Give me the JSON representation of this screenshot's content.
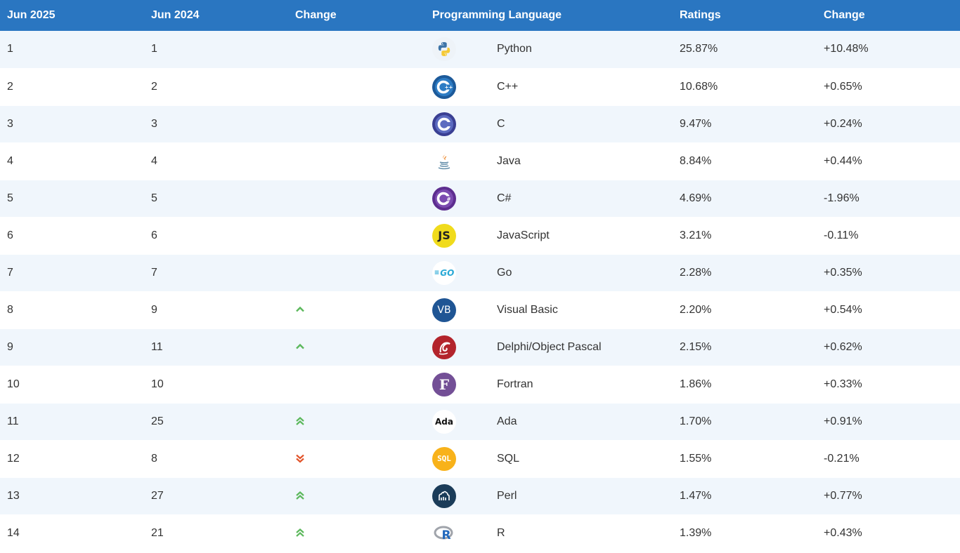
{
  "header": {
    "col_jun2025": "Jun 2025",
    "col_jun2024": "Jun 2024",
    "col_change": "Change",
    "col_language": "Programming Language",
    "col_ratings": "Ratings",
    "col_change2": "Change"
  },
  "colors": {
    "header_bg": "#2a76c1",
    "row_alt": "#f0f6fc",
    "arrow_up": "#5cb85c",
    "arrow_down": "#e2542a"
  },
  "rows": [
    {
      "rank2025": "1",
      "rank2024": "1",
      "trend": "none",
      "icon": "python-icon",
      "language": "Python",
      "rating": "25.87%",
      "change": "+10.48%"
    },
    {
      "rank2025": "2",
      "rank2024": "2",
      "trend": "none",
      "icon": "cplusplus-icon",
      "language": "C++",
      "rating": "10.68%",
      "change": "+0.65%"
    },
    {
      "rank2025": "3",
      "rank2024": "3",
      "trend": "none",
      "icon": "c-icon",
      "language": "C",
      "rating": "9.47%",
      "change": "+0.24%"
    },
    {
      "rank2025": "4",
      "rank2024": "4",
      "trend": "none",
      "icon": "java-icon",
      "language": "Java",
      "rating": "8.84%",
      "change": "+0.44%"
    },
    {
      "rank2025": "5",
      "rank2024": "5",
      "trend": "none",
      "icon": "csharp-icon",
      "language": "C#",
      "rating": "4.69%",
      "change": "-1.96%"
    },
    {
      "rank2025": "6",
      "rank2024": "6",
      "trend": "none",
      "icon": "javascript-icon",
      "language": "JavaScript",
      "rating": "3.21%",
      "change": "-0.11%"
    },
    {
      "rank2025": "7",
      "rank2024": "7",
      "trend": "none",
      "icon": "go-icon",
      "language": "Go",
      "rating": "2.28%",
      "change": "+0.35%"
    },
    {
      "rank2025": "8",
      "rank2024": "9",
      "trend": "up",
      "icon": "visual-basic-icon",
      "language": "Visual Basic",
      "rating": "2.20%",
      "change": "+0.54%"
    },
    {
      "rank2025": "9",
      "rank2024": "11",
      "trend": "up",
      "icon": "delphi-icon",
      "language": "Delphi/Object Pascal",
      "rating": "2.15%",
      "change": "+0.62%"
    },
    {
      "rank2025": "10",
      "rank2024": "10",
      "trend": "none",
      "icon": "fortran-icon",
      "language": "Fortran",
      "rating": "1.86%",
      "change": "+0.33%"
    },
    {
      "rank2025": "11",
      "rank2024": "25",
      "trend": "double-up",
      "icon": "ada-icon",
      "language": "Ada",
      "rating": "1.70%",
      "change": "+0.91%"
    },
    {
      "rank2025": "12",
      "rank2024": "8",
      "trend": "double-down",
      "icon": "sql-icon",
      "language": "SQL",
      "rating": "1.55%",
      "change": "-0.21%"
    },
    {
      "rank2025": "13",
      "rank2024": "27",
      "trend": "double-up",
      "icon": "perl-icon",
      "language": "Perl",
      "rating": "1.47%",
      "change": "+0.77%"
    },
    {
      "rank2025": "14",
      "rank2024": "21",
      "trend": "double-up",
      "icon": "r-icon",
      "language": "R",
      "rating": "1.39%",
      "change": "+0.43%"
    }
  ],
  "logo_text": {
    "javascript": "JS",
    "go": "GO",
    "visual_basic": "VB",
    "fortran": "F",
    "ada": "Ada",
    "sql": "SQL",
    "r": "R",
    "c": "C",
    "cplusplus": "C++",
    "csharp": "C#"
  }
}
